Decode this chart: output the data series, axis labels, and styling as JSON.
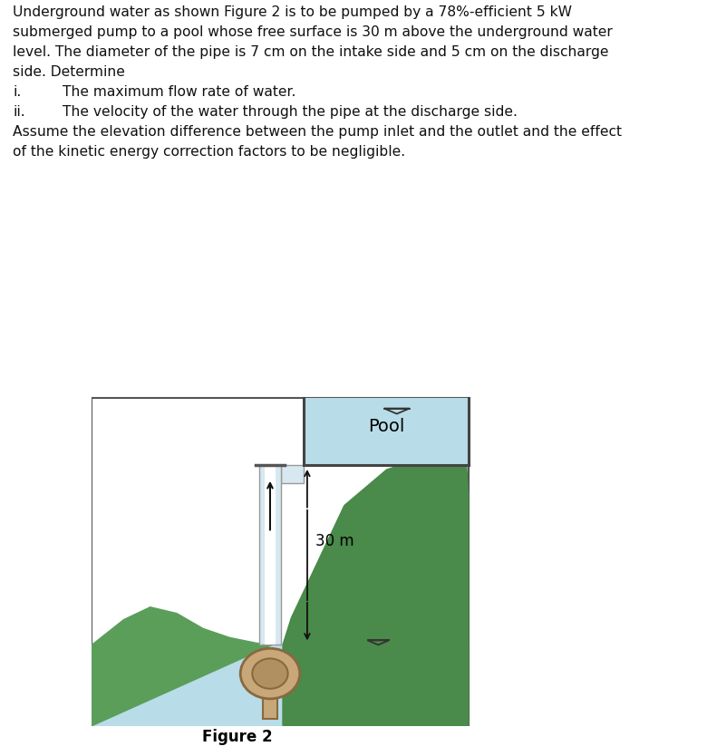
{
  "title": "Figure 2",
  "problem_text_lines": [
    "Underground water as shown Figure 2 is to be pumped by a 78%-efficient 5 kW",
    "submerged pump to a pool whose free surface is 30 m above the underground water",
    "level. The diameter of the pipe is 7 cm on the intake side and 5 cm on the discharge",
    "side. Determine"
  ],
  "item_i_label": "i.",
  "item_i_text": "The maximum flow rate of water.",
  "item_ii_label": "ii.",
  "item_ii_text": "The velocity of the water through the pipe at the discharge side.",
  "assume_text_lines": [
    "Assume the elevation difference between the pump inlet and the outlet and the effect",
    "of the kinetic energy correction factors to be negligible."
  ],
  "label_30m": "30 m",
  "label_pool": "Pool",
  "label_figure": "Figure 2",
  "bg_color": "#ffffff",
  "water_color": "#b8dce8",
  "pool_water_color": "#b8dce8",
  "ground_color_left": "#5a9e5a",
  "ground_color_right": "#4a8a4a",
  "pipe_face_color": "#d8e8f0",
  "pipe_edge_color": "#999999",
  "pipe_white": "#ffffff",
  "pump_outer_color": "#c8a878",
  "pump_inner_color": "#b09060",
  "pump_dark": "#8a6840",
  "border_color": "#555555",
  "arrow_color": "#111111",
  "text_color": "#111111",
  "font_size_body": 11.2,
  "font_size_label": 12.5,
  "font_size_pool": 14,
  "font_size_30m": 12,
  "font_size_figure": 12
}
